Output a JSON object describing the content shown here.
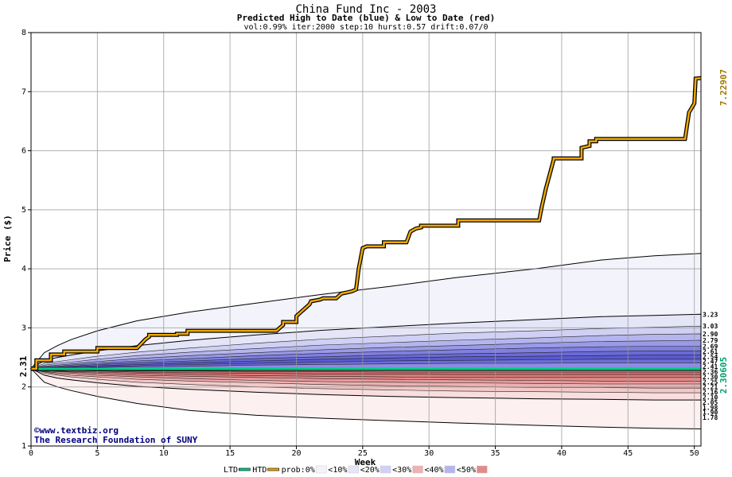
{
  "chart_data": {
    "type": "line",
    "title": "China Fund Inc - 2003",
    "subtitle": "Predicted High to Date (blue) &  Low to Date (red)",
    "params": "vol:0.99% iter:2000 step:10 hurst:0.57 drift:0.07/0",
    "xlabel": "Week",
    "ylabel": "Price ($)",
    "xlim": [
      0,
      50.5
    ],
    "ylim": [
      1,
      8
    ],
    "xticks": [
      0,
      5,
      10,
      15,
      20,
      25,
      30,
      35,
      40,
      45,
      50
    ],
    "yticks": [
      1,
      2,
      3,
      4,
      5,
      6,
      7,
      8
    ],
    "grid": true,
    "start_value_label": "2.31",
    "htd_end_label": "7.22907",
    "ltd_end_label": "2.30605",
    "right_labels": [
      "3.23",
      "3.03",
      "2.90",
      "2.79",
      "2.69",
      "2.61",
      "2.54",
      "2.47",
      "2.41",
      "2.36",
      "2.30",
      "2.25",
      "2.21",
      "2.16",
      "2.10",
      "2.05",
      "1.98",
      "1.90",
      "1.78"
    ],
    "bands_x": [
      0,
      1,
      2,
      3,
      5,
      8,
      12,
      17,
      22,
      27,
      32,
      38,
      43,
      47,
      50.5
    ],
    "upper_bands": [
      {
        "color": "#f3f3fc",
        "values": [
          2.31,
          2.58,
          2.7,
          2.8,
          2.95,
          3.12,
          3.27,
          3.42,
          3.57,
          3.7,
          3.85,
          4.0,
          4.15,
          4.22,
          4.26
        ]
      },
      {
        "color": "#e5e5f8",
        "values": [
          2.31,
          2.45,
          2.5,
          2.54,
          2.61,
          2.7,
          2.79,
          2.88,
          2.96,
          3.02,
          3.08,
          3.14,
          3.19,
          3.21,
          3.23
        ]
      },
      {
        "color": "#d0d0f4",
        "values": [
          2.31,
          2.4,
          2.43,
          2.46,
          2.52,
          2.59,
          2.66,
          2.74,
          2.81,
          2.86,
          2.91,
          2.95,
          2.99,
          3.01,
          3.03
        ]
      },
      {
        "color": "#b5b5ee",
        "values": [
          2.31,
          2.37,
          2.4,
          2.42,
          2.47,
          2.53,
          2.59,
          2.65,
          2.71,
          2.75,
          2.79,
          2.83,
          2.87,
          2.89,
          2.9
        ]
      },
      {
        "color": "#9a9ae8",
        "values": [
          2.31,
          2.35,
          2.37,
          2.39,
          2.43,
          2.48,
          2.53,
          2.58,
          2.63,
          2.67,
          2.7,
          2.74,
          2.77,
          2.78,
          2.79
        ]
      },
      {
        "color": "#8080e0",
        "values": [
          2.31,
          2.34,
          2.35,
          2.37,
          2.4,
          2.44,
          2.48,
          2.53,
          2.57,
          2.6,
          2.63,
          2.66,
          2.68,
          2.69,
          2.69
        ]
      },
      {
        "color": "#6a6ad8",
        "values": [
          2.31,
          2.33,
          2.34,
          2.35,
          2.38,
          2.41,
          2.44,
          2.48,
          2.51,
          2.54,
          2.56,
          2.58,
          2.6,
          2.61,
          2.61
        ]
      },
      {
        "color": "#5a5ad0",
        "values": [
          2.31,
          2.32,
          2.33,
          2.34,
          2.36,
          2.38,
          2.41,
          2.44,
          2.47,
          2.49,
          2.51,
          2.52,
          2.53,
          2.54,
          2.54
        ]
      },
      {
        "color": "#6c6cd8",
        "values": [
          2.31,
          2.32,
          2.32,
          2.33,
          2.34,
          2.36,
          2.38,
          2.4,
          2.42,
          2.44,
          2.45,
          2.46,
          2.47,
          2.47,
          2.47
        ]
      },
      {
        "color": "#8c8ce2",
        "values": [
          2.31,
          2.31,
          2.32,
          2.32,
          2.33,
          2.34,
          2.35,
          2.37,
          2.38,
          2.39,
          2.4,
          2.4,
          2.41,
          2.41,
          2.41
        ]
      }
    ],
    "lower_bands": [
      {
        "color": "#fcf0f0",
        "values": [
          2.31,
          2.08,
          2.0,
          1.94,
          1.84,
          1.72,
          1.6,
          1.52,
          1.47,
          1.43,
          1.39,
          1.35,
          1.32,
          1.3,
          1.29
        ]
      },
      {
        "color": "#f8dede",
        "values": [
          2.31,
          2.2,
          2.15,
          2.12,
          2.07,
          2.01,
          1.96,
          1.91,
          1.87,
          1.84,
          1.82,
          1.8,
          1.79,
          1.78,
          1.78
        ]
      },
      {
        "color": "#f4c8c8",
        "values": [
          2.31,
          2.23,
          2.2,
          2.17,
          2.13,
          2.08,
          2.04,
          2.0,
          1.97,
          1.95,
          1.93,
          1.92,
          1.91,
          1.9,
          1.9
        ]
      },
      {
        "color": "#eeb0b0",
        "values": [
          2.31,
          2.25,
          2.22,
          2.2,
          2.17,
          2.13,
          2.1,
          2.07,
          2.04,
          2.02,
          2.01,
          1.99,
          1.99,
          1.98,
          1.98
        ]
      },
      {
        "color": "#e89a9a",
        "values": [
          2.31,
          2.26,
          2.24,
          2.23,
          2.2,
          2.17,
          2.14,
          2.11,
          2.09,
          2.08,
          2.07,
          2.06,
          2.05,
          2.05,
          2.05
        ]
      },
      {
        "color": "#e28a8a",
        "values": [
          2.31,
          2.27,
          2.26,
          2.25,
          2.23,
          2.2,
          2.18,
          2.16,
          2.14,
          2.13,
          2.12,
          2.11,
          2.1,
          2.1,
          2.1
        ]
      },
      {
        "color": "#dc7a7a",
        "values": [
          2.31,
          2.28,
          2.27,
          2.26,
          2.25,
          2.23,
          2.21,
          2.19,
          2.18,
          2.17,
          2.16,
          2.16,
          2.16,
          2.16,
          2.16
        ]
      },
      {
        "color": "#d86c6c",
        "values": [
          2.31,
          2.29,
          2.28,
          2.28,
          2.27,
          2.25,
          2.24,
          2.23,
          2.22,
          2.22,
          2.21,
          2.21,
          2.21,
          2.21,
          2.21
        ]
      },
      {
        "color": "#e08a8a",
        "values": [
          2.31,
          2.3,
          2.29,
          2.29,
          2.28,
          2.27,
          2.27,
          2.26,
          2.26,
          2.25,
          2.25,
          2.25,
          2.25,
          2.25,
          2.25
        ]
      }
    ],
    "htd": {
      "name": "HTD",
      "x": [
        0,
        0.4,
        0.4,
        1.5,
        1.5,
        2.5,
        2.5,
        5.0,
        5.0,
        8.0,
        8.3,
        8.6,
        8.9,
        8.9,
        11.0,
        11.0,
        11.8,
        11.8,
        18.5,
        19.0,
        19.0,
        20.0,
        20.0,
        21.0,
        21.1,
        21.8,
        22.0,
        23.0,
        23.4,
        23.8,
        24.2,
        24.5,
        24.7,
        25.0,
        25.3,
        26.6,
        26.6,
        28.3,
        28.6,
        29.0,
        29.4,
        29.4,
        32.2,
        32.2,
        38.3,
        38.5,
        38.8,
        39.1,
        39.4,
        39.4,
        41.5,
        41.5,
        42.1,
        42.1,
        42.6,
        42.6,
        49.3,
        49.6,
        50.0,
        50.1,
        50.5
      ],
      "y": [
        2.31,
        2.31,
        2.45,
        2.45,
        2.55,
        2.55,
        2.6,
        2.6,
        2.66,
        2.66,
        2.73,
        2.8,
        2.85,
        2.88,
        2.88,
        2.9,
        2.9,
        2.95,
        2.95,
        3.05,
        3.1,
        3.1,
        3.2,
        3.4,
        3.45,
        3.48,
        3.5,
        3.5,
        3.58,
        3.6,
        3.62,
        3.65,
        4.0,
        4.35,
        4.38,
        4.38,
        4.45,
        4.45,
        4.63,
        4.68,
        4.7,
        4.73,
        4.73,
        4.82,
        4.82,
        5.05,
        5.35,
        5.6,
        5.85,
        5.87,
        5.87,
        6.05,
        6.08,
        6.16,
        6.16,
        6.2,
        6.2,
        6.65,
        6.8,
        7.22,
        7.23
      ]
    },
    "ltd": {
      "name": "LTD",
      "value": 2.30605
    },
    "watermark": [
      "©www.textbiz.org",
      "The Research Foundation of SUNY"
    ],
    "legend": {
      "items": [
        "LTD",
        "HTD",
        "prob:0%",
        "<10%",
        "<20%",
        "<30%",
        "<40%",
        "<50%"
      ],
      "colors": [
        "#00cc88",
        "#f0a800",
        "#f3f3fc",
        "#e5e5f8",
        "#d0d0f4",
        "#eeb0b0",
        "#b5b5ee",
        "#e28a8a"
      ],
      "placement": "bottom"
    }
  }
}
